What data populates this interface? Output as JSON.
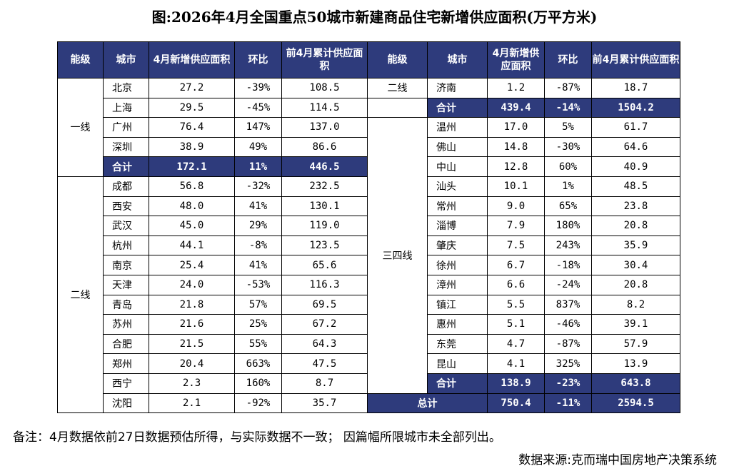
{
  "title": "图:2026年4月全国重点50城市新建商品住宅新增供应面积(万平方米)",
  "headers": {
    "tier": "能级",
    "city": "城市",
    "new_supply": "4月新增供应面积",
    "mom": "环比",
    "cumulative": "前4月累计供应面积",
    "new_supply_r": "4月新增供应面积"
  },
  "tiers": {
    "t1": "一线",
    "t2": "二线",
    "t34": "三四线"
  },
  "sum_label": "合计",
  "total_label": "总计",
  "left": [
    [
      "北京",
      "27.2",
      "-39%",
      "108.5"
    ],
    [
      "上海",
      "29.5",
      "-45%",
      "114.5"
    ],
    [
      "广州",
      "76.4",
      "147%",
      "137.0"
    ],
    [
      "深圳",
      "38.9",
      "49%",
      "86.6"
    ],
    [
      "合计",
      "172.1",
      "11%",
      "446.5"
    ],
    [
      "成都",
      "56.8",
      "-32%",
      "232.5"
    ],
    [
      "西安",
      "48.0",
      "41%",
      "130.1"
    ],
    [
      "武汉",
      "45.0",
      "29%",
      "119.0"
    ],
    [
      "杭州",
      "44.1",
      "-8%",
      "123.5"
    ],
    [
      "南京",
      "25.4",
      "41%",
      "65.6"
    ],
    [
      "天津",
      "24.0",
      "-53%",
      "116.3"
    ],
    [
      "青岛",
      "21.8",
      "57%",
      "69.5"
    ],
    [
      "苏州",
      "21.6",
      "25%",
      "67.2"
    ],
    [
      "合肥",
      "21.5",
      "55%",
      "64.3"
    ],
    [
      "郑州",
      "20.4",
      "663%",
      "47.5"
    ],
    [
      "西宁",
      "2.3",
      "160%",
      "8.7"
    ],
    [
      "沈阳",
      "2.1",
      "-92%",
      "35.7"
    ]
  ],
  "right": [
    [
      "济南",
      "1.2",
      "-87%",
      "18.7"
    ],
    [
      "合计",
      "439.4",
      "-14%",
      "1504.2"
    ],
    [
      "温州",
      "17.0",
      "5%",
      "61.7"
    ],
    [
      "佛山",
      "14.8",
      "-30%",
      "64.6"
    ],
    [
      "中山",
      "12.8",
      "60%",
      "40.9"
    ],
    [
      "汕头",
      "10.1",
      "1%",
      "48.5"
    ],
    [
      "常州",
      "9.0",
      "65%",
      "23.8"
    ],
    [
      "淄博",
      "7.9",
      "180%",
      "20.8"
    ],
    [
      "肇庆",
      "7.5",
      "243%",
      "35.9"
    ],
    [
      "徐州",
      "6.7",
      "-18%",
      "30.4"
    ],
    [
      "漳州",
      "6.6",
      "-24%",
      "20.8"
    ],
    [
      "镇江",
      "5.5",
      "837%",
      "8.2"
    ],
    [
      "惠州",
      "5.1",
      "-46%",
      "39.1"
    ],
    [
      "东莞",
      "4.7",
      "-87%",
      "57.9"
    ],
    [
      "昆山",
      "4.1",
      "325%",
      "13.9"
    ],
    [
      "合计",
      "138.9",
      "-23%",
      "643.8"
    ],
    [
      "总计",
      "750.4",
      "-11%",
      "2594.5"
    ]
  ],
  "note": "备注：4月数据依前27日数据预估所得，与实际数据不一致；  因篇幅所限城市未全部列出。",
  "source": "数据来源:克而瑞中国房地产决策系统"
}
